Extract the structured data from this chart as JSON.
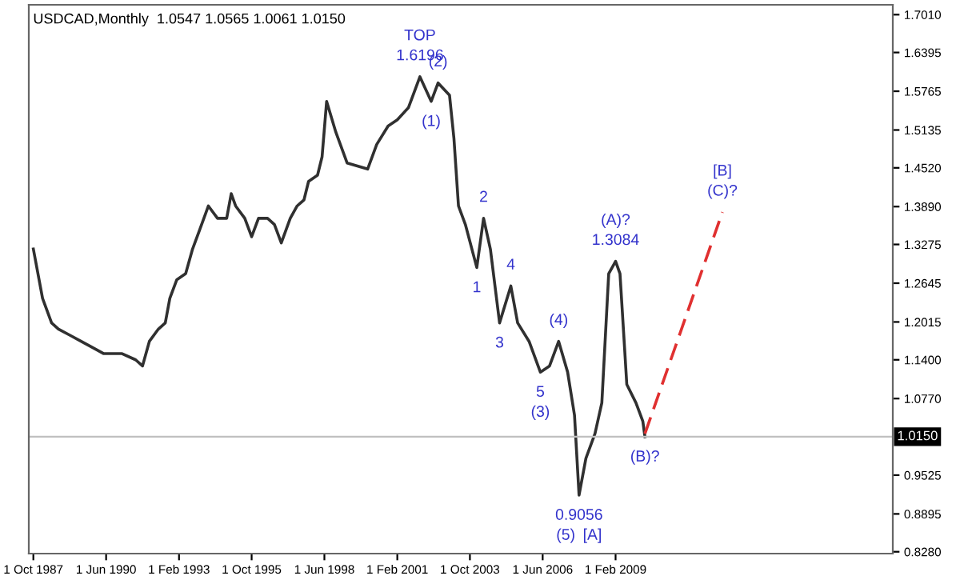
{
  "chart_data": {
    "type": "line",
    "title": "USDCAD,Monthly  1.0547 1.0565 1.0061 1.0150",
    "x": [
      "1987-10",
      "1988-02",
      "1988-06",
      "1988-09",
      "1989-02",
      "1989-07",
      "1989-12",
      "1990-05",
      "1990-09",
      "1991-01",
      "1991-07",
      "1991-10",
      "1992-01",
      "1992-05",
      "1992-08",
      "1992-10",
      "1993-01",
      "1993-05",
      "1993-08",
      "1993-11",
      "1994-03",
      "1994-07",
      "1994-11",
      "1995-01",
      "1995-03",
      "1995-07",
      "1995-10",
      "1996-01",
      "1996-05",
      "1996-08",
      "1996-11",
      "1997-03",
      "1997-06",
      "1997-09",
      "1997-11",
      "1998-03",
      "1998-05",
      "1998-07",
      "1998-11",
      "1999-04",
      "2000-01",
      "2000-05",
      "2000-10",
      "2001-02",
      "2001-07",
      "2001-12",
      "2002-05",
      "2002-08",
      "2003-01",
      "2003-03",
      "2003-05",
      "2003-08",
      "2004-01",
      "2004-04",
      "2004-07",
      "2004-11",
      "2005-04",
      "2005-07",
      "2005-12",
      "2006-05",
      "2006-09",
      "2007-01",
      "2007-05",
      "2007-08",
      "2007-10",
      "2008-01",
      "2008-05",
      "2008-08",
      "2008-11",
      "2009-02",
      "2009-04",
      "2009-06",
      "2009-07",
      "2009-11",
      "2010-02",
      "2010-03"
    ],
    "series": [
      {
        "color": "#303030",
        "line_style": "solid",
        "values": [
          1.32,
          1.24,
          1.2,
          1.19,
          1.18,
          1.17,
          1.16,
          1.15,
          1.15,
          1.15,
          1.14,
          1.13,
          1.17,
          1.19,
          1.2,
          1.24,
          1.27,
          1.28,
          1.32,
          1.35,
          1.39,
          1.37,
          1.37,
          1.41,
          1.39,
          1.37,
          1.34,
          1.37,
          1.37,
          1.36,
          1.33,
          1.37,
          1.39,
          1.4,
          1.43,
          1.44,
          1.47,
          1.56,
          1.51,
          1.46,
          1.45,
          1.49,
          1.52,
          1.53,
          1.55,
          1.6,
          1.56,
          1.59,
          1.57,
          1.5,
          1.39,
          1.36,
          1.29,
          1.37,
          1.32,
          1.2,
          1.26,
          1.2,
          1.17,
          1.12,
          1.13,
          1.17,
          1.12,
          1.05,
          0.92,
          0.98,
          1.02,
          1.07,
          1.28,
          1.3,
          1.28,
          1.16,
          1.1,
          1.07,
          1.04,
          1.015
        ]
      },
      {
        "color": "#e03030",
        "line_style": "dashed",
        "x": [
          "2010-03",
          "2013-01"
        ],
        "values": [
          1.02,
          1.38
        ]
      }
    ],
    "xlim": [
      "1987-08",
      "2019-04"
    ],
    "xticks": [
      {
        "value": "1987-10",
        "label": "1 Oct 1987"
      },
      {
        "value": "1990-06",
        "label": "1 Jun 1990"
      },
      {
        "value": "1993-02",
        "label": "1 Feb 1993"
      },
      {
        "value": "1995-10",
        "label": "1 Oct 1995"
      },
      {
        "value": "1998-06",
        "label": "1 Jun 1998"
      },
      {
        "value": "2001-02",
        "label": "1 Feb 2001"
      },
      {
        "value": "2003-10",
        "label": "1 Oct 2003"
      },
      {
        "value": "2006-06",
        "label": "1 Jun 2006"
      },
      {
        "value": "2009-02",
        "label": "1 Feb 2009"
      }
    ],
    "ylim": [
      0.825,
      1.717
    ],
    "yticks": [
      {
        "value": 1.701,
        "label": "1.7010"
      },
      {
        "value": 1.6395,
        "label": "1.6395"
      },
      {
        "value": 1.5765,
        "label": "1.5765"
      },
      {
        "value": 1.5135,
        "label": "1.5135"
      },
      {
        "value": 1.452,
        "label": "1.4520"
      },
      {
        "value": 1.389,
        "label": "1.3890"
      },
      {
        "value": 1.3275,
        "label": "1.3275"
      },
      {
        "value": 1.2645,
        "label": "1.2645"
      },
      {
        "value": 1.2015,
        "label": "1.2015"
      },
      {
        "value": 1.14,
        "label": "1.1400"
      },
      {
        "value": 1.077,
        "label": "1.0770"
      },
      {
        "value": 0.9525,
        "label": "0.9525"
      },
      {
        "value": 0.8895,
        "label": "0.8895"
      },
      {
        "value": 0.828,
        "label": "0.8280"
      }
    ],
    "ref_lines": [
      {
        "axis": "y",
        "value": 1.015,
        "label": "1.0150",
        "color": "#c0c0c0"
      }
    ],
    "grid": false,
    "legend": false,
    "marker": "none",
    "annotations": [
      {
        "text": "TOP",
        "x": "2001-12",
        "y": 1.6
      },
      {
        "text": "1.6196",
        "x": "2001-12",
        "y": 1.6
      },
      {
        "text": "(2)",
        "x": "2002-08",
        "y": 1.59
      },
      {
        "text": "(1)",
        "x": "2002-05",
        "y": 1.56
      },
      {
        "text": "2",
        "x": "2004-04",
        "y": 1.37
      },
      {
        "text": "1",
        "x": "2004-01",
        "y": 1.29
      },
      {
        "text": "4",
        "x": "2005-04",
        "y": 1.26
      },
      {
        "text": "3",
        "x": "2004-11",
        "y": 1.2
      },
      {
        "text": "5",
        "x": "2006-05",
        "y": 1.12
      },
      {
        "text": "(3)",
        "x": "2006-05",
        "y": 1.12
      },
      {
        "text": "(4)",
        "x": "2007-01",
        "y": 1.17
      },
      {
        "text": "0.9056",
        "x": "2007-10",
        "y": 0.92
      },
      {
        "text": "(5)",
        "x": "2007-10",
        "y": 0.92
      },
      {
        "text": "[A]",
        "x": "2007-10",
        "y": 0.92
      },
      {
        "text": "(A)?",
        "x": "2009-02",
        "y": 1.3
      },
      {
        "text": "1.3084",
        "x": "2009-02",
        "y": 1.3
      },
      {
        "text": "(B)?",
        "x": "2010-03",
        "y": 1.015
      },
      {
        "text": "[B]",
        "x": "2013-01",
        "y": 1.38
      },
      {
        "text": "(C)?",
        "x": "2013-01",
        "y": 1.38
      }
    ]
  }
}
